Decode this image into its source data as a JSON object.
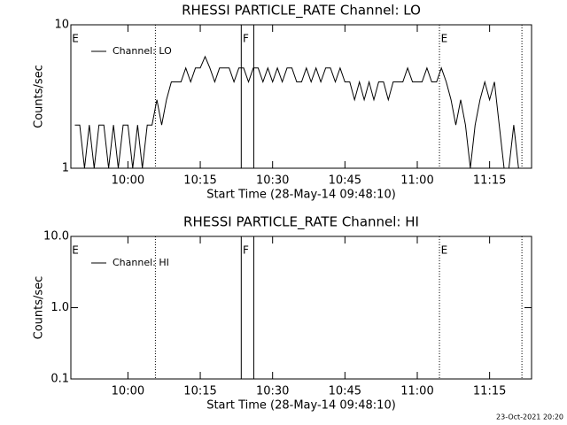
{
  "chart_data": [
    {
      "type": "line",
      "title": "RHESSI PARTICLE_RATE Channel: LO",
      "xlabel": "Start Time (28-May-14 09:48:10)",
      "ylabel": "Counts/sec",
      "xlim": [
        588.17,
        683.7
      ],
      "xticks": [
        {
          "value": 600,
          "label": "10:00"
        },
        {
          "value": 615,
          "label": "10:15"
        },
        {
          "value": 630,
          "label": "10:30"
        },
        {
          "value": 645,
          "label": "10:45"
        },
        {
          "value": 660,
          "label": "11:00"
        },
        {
          "value": 675,
          "label": "11:15"
        }
      ],
      "ylim": [
        1,
        10
      ],
      "yticks": [
        1,
        10
      ],
      "log_y": true,
      "x": [
        589,
        590,
        591,
        592,
        593,
        594,
        595,
        596,
        597,
        598,
        599,
        600,
        601,
        602,
        603,
        604,
        605,
        606,
        607,
        608,
        609,
        610,
        611,
        612,
        613,
        614,
        615,
        616,
        617,
        618,
        619,
        620,
        621,
        622,
        623,
        624,
        625,
        626,
        627,
        628,
        629,
        630,
        631,
        632,
        633,
        634,
        635,
        636,
        637,
        638,
        639,
        640,
        641,
        642,
        643,
        644,
        645,
        646,
        647,
        648,
        649,
        650,
        651,
        652,
        653,
        654,
        655,
        656,
        657,
        658,
        659,
        660,
        661,
        662,
        663,
        664,
        665,
        666,
        667,
        668,
        669,
        670,
        671,
        672,
        673,
        674,
        675,
        676,
        677,
        678,
        679,
        680,
        681
      ],
      "series": [
        {
          "name": "Channel: LO",
          "color": "#000000",
          "values": [
            2,
            2,
            1,
            2,
            1,
            2,
            2,
            1,
            2,
            1,
            2,
            2,
            1,
            2,
            1,
            2,
            2,
            3,
            2,
            3,
            4,
            4,
            4,
            5,
            4,
            5,
            5,
            6,
            5,
            4,
            5,
            5,
            5,
            4,
            5,
            5,
            4,
            5,
            5,
            4,
            5,
            4,
            5,
            4,
            5,
            5,
            4,
            4,
            5,
            4,
            5,
            4,
            5,
            5,
            4,
            5,
            4,
            4,
            3,
            4,
            3,
            4,
            3,
            4,
            4,
            3,
            4,
            4,
            4,
            5,
            4,
            4,
            4,
            5,
            4,
            4,
            5,
            4,
            3,
            2,
            3,
            2,
            1,
            2,
            3,
            4,
            3,
            4,
            2,
            1,
            1,
            2,
            1
          ]
        }
      ],
      "vlines": [
        {
          "x": 605.7,
          "style": "dotted"
        },
        {
          "x": 623.5,
          "style": "solid"
        },
        {
          "x": 626.1,
          "style": "solid"
        },
        {
          "x": 664.6,
          "style": "dotted"
        },
        {
          "x": 681.7,
          "style": "dotted"
        }
      ],
      "annotations": [
        {
          "text": "E",
          "x": 588.4
        },
        {
          "text": "F",
          "x": 623.8
        },
        {
          "text": "E",
          "x": 664.9
        }
      ]
    },
    {
      "type": "line",
      "title": "RHESSI PARTICLE_RATE Channel: HI",
      "xlabel": "Start Time (28-May-14 09:48:10)",
      "ylabel": "Counts/sec",
      "xlim": [
        588.17,
        683.7
      ],
      "xticks": [
        {
          "value": 600,
          "label": "10:00"
        },
        {
          "value": 615,
          "label": "10:15"
        },
        {
          "value": 630,
          "label": "10:30"
        },
        {
          "value": 645,
          "label": "10:45"
        },
        {
          "value": 660,
          "label": "11:00"
        },
        {
          "value": 675,
          "label": "11:15"
        }
      ],
      "ylim": [
        0.1,
        10
      ],
      "yticks": [
        {
          "value": 0.1,
          "label": "0.1"
        },
        {
          "value": 1,
          "label": "1.0"
        },
        {
          "value": 10,
          "label": "10.0"
        }
      ],
      "log_y": true,
      "x": [],
      "series": [
        {
          "name": "Channel: HI",
          "color": "#000000",
          "values": []
        }
      ],
      "vlines": [
        {
          "x": 605.7,
          "style": "dotted"
        },
        {
          "x": 623.5,
          "style": "solid"
        },
        {
          "x": 626.1,
          "style": "solid"
        },
        {
          "x": 664.6,
          "style": "dotted"
        },
        {
          "x": 681.7,
          "style": "dotted"
        }
      ],
      "annotations": [
        {
          "text": "E",
          "x": 588.4
        },
        {
          "text": "F",
          "x": 623.8
        },
        {
          "text": "E",
          "x": 664.9
        }
      ]
    }
  ],
  "footer": "23-Oct-2021 20:20"
}
